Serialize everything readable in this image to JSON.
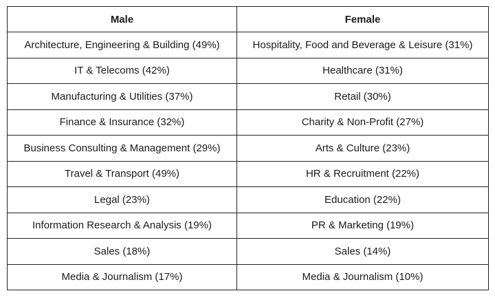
{
  "table": {
    "headers": [
      "Male",
      "Female"
    ],
    "rows": [
      [
        "Architecture, Engineering & Building (49%)",
        "Hospitality, Food and Beverage & Leisure (31%)"
      ],
      [
        "IT & Telecoms (42%)",
        "Healthcare (31%)"
      ],
      [
        "Manufacturing & Utilities (37%)",
        "Retail (30%)"
      ],
      [
        "Finance & Insurance (32%)",
        "Charity & Non-Profit (27%)"
      ],
      [
        "Business Consulting & Management (29%)",
        "Arts & Culture (23%)"
      ],
      [
        "Travel & Transport (49%)",
        "HR & Recruitment (22%)"
      ],
      [
        "Legal (23%)",
        "Education (22%)"
      ],
      [
        "Information Research & Analysis (19%)",
        "PR & Marketing (19%)"
      ],
      [
        "Sales (18%)",
        "Sales (14%)"
      ],
      [
        "Media & Journalism (17%)",
        "Media & Journalism (10%)"
      ]
    ]
  }
}
